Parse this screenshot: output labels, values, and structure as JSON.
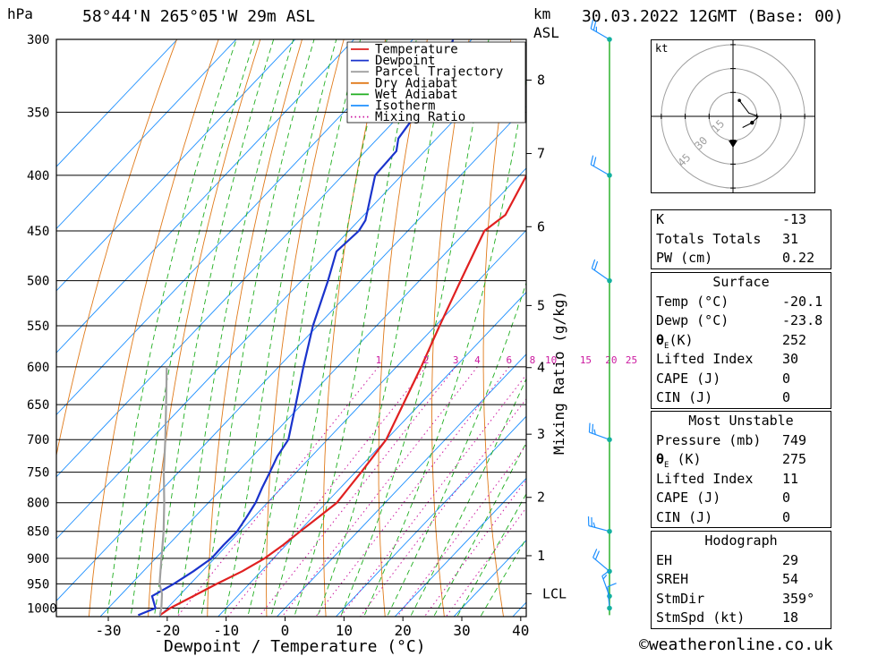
{
  "header": {
    "pressure_unit": "hPa",
    "location": "58°44'N  265°05'W  29m  ASL",
    "km_unit": "km",
    "km_sub": "ASL",
    "datetime": "30.03.2022  12GMT  (Base: 00)"
  },
  "chart_data": {
    "type": "line",
    "xlabel": "Dewpoint / Temperature (°C)",
    "ylabel_right": "Mixing Ratio (g/kg)",
    "xlim": [
      -40,
      40
    ],
    "ylim": [
      1050,
      300
    ],
    "x_ticks": [
      "-30",
      "-20",
      "-10",
      "0",
      "10",
      "20",
      "30",
      "40"
    ],
    "x_tick_values": [
      -30,
      -20,
      -10,
      0,
      10,
      20,
      30,
      40
    ],
    "pressure_ticks": [
      300,
      350,
      400,
      450,
      500,
      550,
      600,
      650,
      700,
      750,
      800,
      850,
      900,
      950,
      1000
    ],
    "km_ticks": [
      {
        "label": "8",
        "p": 327
      },
      {
        "label": "7",
        "p": 382
      },
      {
        "label": "6",
        "p": 446
      },
      {
        "label": "5",
        "p": 527
      },
      {
        "label": "4",
        "p": 601
      },
      {
        "label": "3",
        "p": 692
      },
      {
        "label": "2",
        "p": 791
      },
      {
        "label": "1",
        "p": 895
      }
    ],
    "lcl": {
      "label": "LCL",
      "p": 970
    },
    "mixing_ratio_labels": [
      "1",
      "2",
      "3",
      "4",
      "6",
      "8",
      "10",
      "15",
      "20",
      "25"
    ],
    "mixing_ratio_values": [
      1,
      2,
      3,
      4,
      6,
      8,
      10,
      15,
      20,
      25
    ],
    "legend": [
      "Temperature",
      "Dewpoint",
      "Parcel Trajectory",
      "Dry Adiabat",
      "Wet Adiabat",
      "Isotherm",
      "Mixing Ratio"
    ],
    "legend_position": "top-right",
    "series": [
      {
        "name": "Temperature",
        "color": "#e02020",
        "points": [
          [
            1015,
            -20.1
          ],
          [
            1000,
            -19.5
          ],
          [
            975,
            -17.5
          ],
          [
            950,
            -15.5
          ],
          [
            925,
            -13.2
          ],
          [
            900,
            -11.5
          ],
          [
            875,
            -10.5
          ],
          [
            850,
            -9.8
          ],
          [
            825,
            -9.0
          ],
          [
            800,
            -8.2
          ],
          [
            775,
            -8.6
          ],
          [
            750,
            -9.0
          ],
          [
            725,
            -9.5
          ],
          [
            700,
            -10.0
          ],
          [
            650,
            -12.8
          ],
          [
            600,
            -15.8
          ],
          [
            550,
            -19.3
          ],
          [
            500,
            -23.0
          ],
          [
            450,
            -27.0
          ],
          [
            435,
            -26.0
          ],
          [
            400,
            -28.8
          ],
          [
            375,
            -30.6
          ],
          [
            350,
            -32.5
          ],
          [
            325,
            -35.2
          ],
          [
            312,
            -34.6
          ],
          [
            305,
            -35.8
          ],
          [
            300,
            -36.0
          ]
        ]
      },
      {
        "name": "Dewpoint",
        "color": "#1a33cc",
        "points": [
          [
            1015,
            -23.8
          ],
          [
            1000,
            -22.0
          ],
          [
            975,
            -24.5
          ],
          [
            950,
            -22.8
          ],
          [
            925,
            -21.5
          ],
          [
            900,
            -20.5
          ],
          [
            875,
            -20.6
          ],
          [
            850,
            -20.5
          ],
          [
            825,
            -21.2
          ],
          [
            800,
            -22.0
          ],
          [
            775,
            -23.3
          ],
          [
            750,
            -24.5
          ],
          [
            725,
            -25.8
          ],
          [
            700,
            -26.6
          ],
          [
            650,
            -31.0
          ],
          [
            600,
            -35.8
          ],
          [
            550,
            -40.8
          ],
          [
            500,
            -45.5
          ],
          [
            470,
            -48.8
          ],
          [
            450,
            -48.3
          ],
          [
            440,
            -48.9
          ],
          [
            400,
            -54.5
          ],
          [
            380,
            -54.8
          ],
          [
            370,
            -56.5
          ],
          [
            350,
            -57.5
          ],
          [
            325,
            -59.2
          ],
          [
            310,
            -61.5
          ],
          [
            300,
            -63.2
          ]
        ]
      },
      {
        "name": "Parcel Trajectory",
        "color": "#a0a0a0",
        "points": [
          [
            1015,
            -20.1
          ],
          [
            1000,
            -21.0
          ],
          [
            970,
            -23.2
          ],
          [
            950,
            -25.2
          ],
          [
            900,
            -29.0
          ],
          [
            850,
            -33.0
          ],
          [
            800,
            -37.5
          ],
          [
            750,
            -42.5
          ],
          [
            700,
            -47.5
          ],
          [
            650,
            -53.0
          ],
          [
            600,
            -59.0
          ]
        ]
      }
    ],
    "wind_barbs": [
      {
        "p": 300,
        "dir": 300,
        "speed": 25
      },
      {
        "p": 400,
        "dir": 300,
        "speed": 20
      },
      {
        "p": 500,
        "dir": 305,
        "speed": 20
      },
      {
        "p": 700,
        "dir": 290,
        "speed": 25
      },
      {
        "p": 850,
        "dir": 285,
        "speed": 25
      },
      {
        "p": 925,
        "dir": 310,
        "speed": 20
      },
      {
        "p": 975,
        "dir": 340,
        "speed": 15
      },
      {
        "p": 1000,
        "dir": 355,
        "speed": 10
      }
    ],
    "hodograph": {
      "unit_label": "kt",
      "ring_labels": [
        "15",
        "30",
        "45"
      ],
      "ring_values": [
        15,
        30,
        45
      ],
      "trace_uv": [
        [
          4,
          10
        ],
        [
          10,
          2
        ],
        [
          16,
          0
        ],
        [
          12,
          -4
        ],
        [
          6,
          -7
        ]
      ],
      "storm_motion_uv": [
        0,
        -18
      ]
    }
  },
  "indices": {
    "k_label": "K",
    "k": "-13",
    "tt_label": "Totals Totals",
    "tt": "31",
    "pw_label": "PW (cm)",
    "pw": "0.22"
  },
  "surface": {
    "title": "Surface",
    "temp_label": "Temp (°C)",
    "temp": "-20.1",
    "dewp_label": "Dewp (°C)",
    "dewp": "-23.8",
    "theta_label": "θ",
    "theta_sub": "E",
    "theta_unit": "(K)",
    "theta": "252",
    "li_label": "Lifted Index",
    "li": "30",
    "cape_label": "CAPE (J)",
    "cape": "0",
    "cin_label": "CIN (J)",
    "cin": "0"
  },
  "most_unstable": {
    "title": "Most Unstable",
    "pres_label": "Pressure (mb)",
    "pres": "749",
    "theta_label": "θ",
    "theta_sub": "E",
    "theta_unit": " (K)",
    "theta": "275",
    "li_label": "Lifted Index",
    "li": "11",
    "cape_label": "CAPE (J)",
    "cape": "0",
    "cin_label": "CIN (J)",
    "cin": "0"
  },
  "hodograph_table": {
    "title": "Hodograph",
    "eh_label": "EH",
    "eh": "29",
    "sreh_label": "SREH",
    "sreh": "54",
    "stmdir_label": "StmDir",
    "stmdir": "359°",
    "stmspd_label": "StmSpd (kt)",
    "stmspd": "18"
  },
  "copyright": "©weatheronline.co.uk",
  "colors": {
    "dry_adiabat": "#e07a1a",
    "wet_adiabat": "#1fae1f",
    "isotherm": "#1e90ff",
    "mixing_ratio": "#cc1aa0",
    "wind_line": "#1fae1f",
    "wind_barb": "#1e90ff",
    "wind_dot": "#13b0a0"
  }
}
